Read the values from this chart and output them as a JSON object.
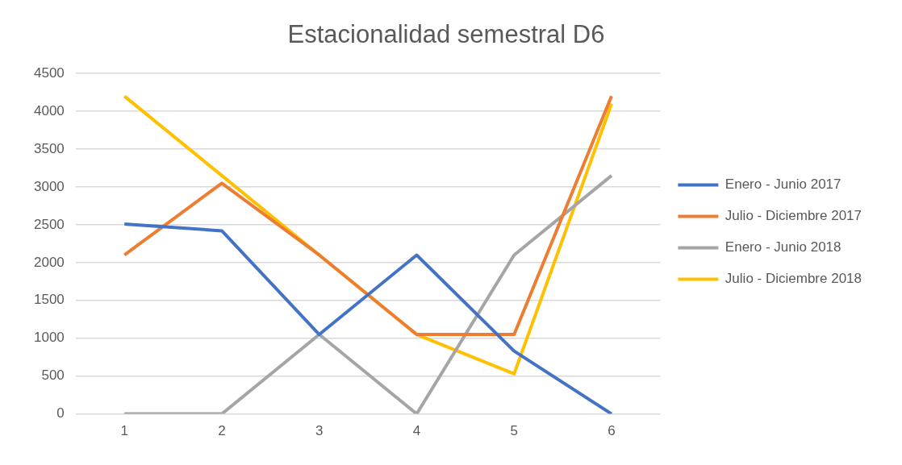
{
  "chart_data": {
    "type": "line",
    "title": "Estacionalidad semestral D6",
    "categories": [
      "1",
      "2",
      "3",
      "4",
      "5",
      "6"
    ],
    "series": [
      {
        "name": "Enero - Junio 2017",
        "color": "#4472c4",
        "values": [
          2510,
          2420,
          1050,
          2100,
          830,
          0
        ]
      },
      {
        "name": "Julio - Diciembre 2017",
        "color": "#ed7d31",
        "values": [
          2100,
          3050,
          2100,
          1050,
          1050,
          4200
        ]
      },
      {
        "name": "Enero - Junio 2018",
        "color": "#a5a5a5",
        "values": [
          0,
          0,
          1050,
          0,
          2100,
          3150
        ]
      },
      {
        "name": "Julio - Diciembre 2018",
        "color": "#ffc000",
        "values": [
          4200,
          3150,
          2100,
          1050,
          530,
          4100
        ]
      }
    ],
    "ylim": [
      0,
      4500
    ],
    "yticks": [
      0,
      500,
      1000,
      1500,
      2000,
      2500,
      3000,
      3500,
      4000,
      4500
    ],
    "grid": "y",
    "legend": "right",
    "marker": "none",
    "line_style": "solid"
  }
}
